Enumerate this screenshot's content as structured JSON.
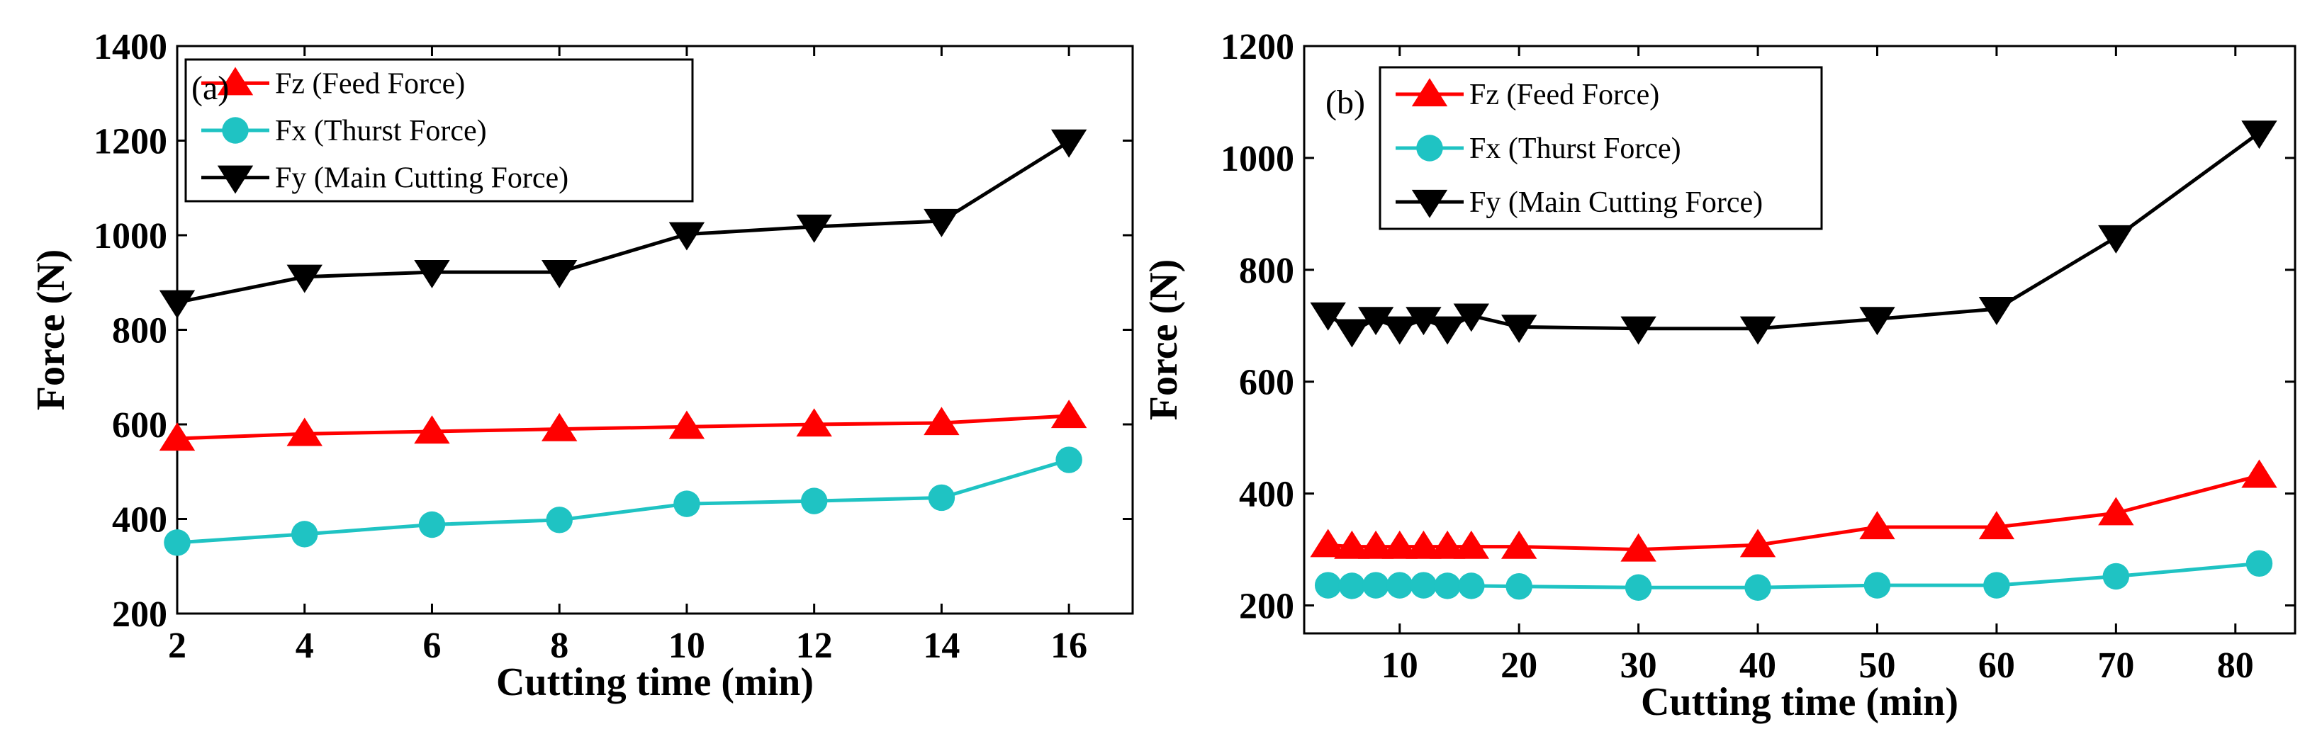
{
  "chart_data": [
    {
      "type": "line",
      "panel_label": "(a)",
      "xlabel": "Cutting time (min)",
      "ylabel": "Force (N)",
      "xlim": [
        2,
        17
      ],
      "ylim": [
        200,
        1400
      ],
      "xticks": [
        2,
        4,
        6,
        8,
        10,
        12,
        14,
        16
      ],
      "yticks": [
        200,
        400,
        600,
        800,
        1000,
        1200,
        1400
      ],
      "grid": false,
      "legend_position": "top-left",
      "series": [
        {
          "name": "Fz (Feed Force)",
          "color": "#ff0000",
          "marker": "triangle-up",
          "x": [
            2,
            4,
            6,
            8,
            10,
            12,
            14,
            16
          ],
          "values": [
            570,
            580,
            585,
            590,
            595,
            600,
            603,
            618
          ]
        },
        {
          "name": "Fx (Thurst Force)",
          "color": "#1fc3c3",
          "marker": "circle",
          "x": [
            2,
            4,
            6,
            8,
            10,
            12,
            14,
            16
          ],
          "values": [
            350,
            368,
            388,
            398,
            432,
            438,
            445,
            525
          ]
        },
        {
          "name": "Fy (Main Cutting Force)",
          "color": "#000000",
          "marker": "triangle-down",
          "x": [
            2,
            4,
            6,
            8,
            10,
            12,
            14,
            16
          ],
          "values": [
            858,
            912,
            922,
            922,
            1002,
            1018,
            1030,
            1198
          ]
        }
      ]
    },
    {
      "type": "line",
      "panel_label": "(b)",
      "xlabel": "Cutting time (min)",
      "ylabel": "Force (N)",
      "xlim": [
        2,
        85
      ],
      "ylim": [
        150,
        1200
      ],
      "xticks": [
        10,
        20,
        30,
        40,
        50,
        60,
        70,
        80
      ],
      "yticks": [
        200,
        400,
        600,
        800,
        1000,
        1200
      ],
      "grid": false,
      "legend_position": "top-left",
      "series": [
        {
          "name": "Fz (Feed  Force)",
          "color": "#ff0000",
          "marker": "triangle-up",
          "x": [
            4,
            6,
            8,
            10,
            12,
            14,
            16,
            20,
            30,
            40,
            50,
            60,
            70,
            82
          ],
          "values": [
            308,
            305,
            305,
            305,
            305,
            305,
            305,
            305,
            300,
            308,
            340,
            340,
            365,
            432
          ]
        },
        {
          "name": "Fx (Thurst Force)",
          "color": "#1fc3c3",
          "marker": "circle",
          "x": [
            4,
            6,
            8,
            10,
            12,
            14,
            16,
            20,
            30,
            40,
            50,
            60,
            70,
            82
          ],
          "values": [
            236,
            235,
            236,
            236,
            236,
            235,
            235,
            234,
            232,
            232,
            236,
            236,
            252,
            275
          ]
        },
        {
          "name": "Fy (Main Cutting Force)",
          "color": "#000000",
          "marker": "triangle-down",
          "x": [
            4,
            6,
            8,
            10,
            12,
            14,
            16,
            20,
            30,
            40,
            50,
            60,
            70,
            82
          ],
          "values": [
            720,
            690,
            712,
            695,
            712,
            695,
            718,
            698,
            695,
            695,
            712,
            730,
            858,
            1045
          ]
        }
      ]
    }
  ]
}
